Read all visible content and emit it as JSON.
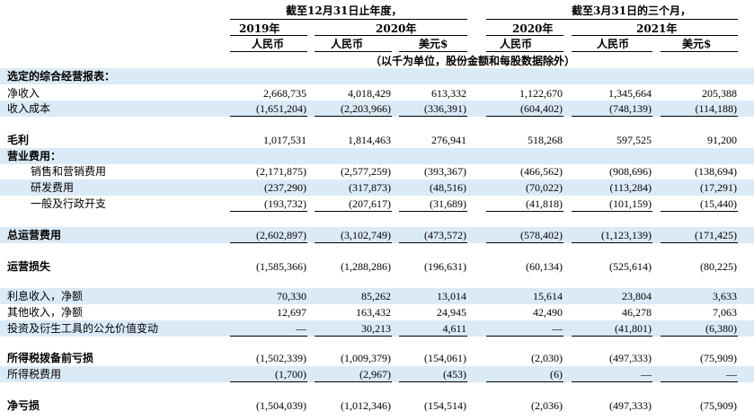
{
  "header": {
    "period_fy": "截至12月31日止年度，",
    "period_q": "截至3月31日的三个月，",
    "years": [
      "2019年",
      "2020年",
      "2020年",
      "2021年"
    ],
    "currencies": [
      "人民币",
      "人民币",
      "美元$",
      "人民币",
      "人民币",
      "美元$"
    ],
    "unit_note": "（以千为单位，股份金额和每股数据除外）"
  },
  "rows": [
    {
      "label": "选定的综合经营报表：",
      "bold": true,
      "shade": true,
      "indent": 0,
      "values": [
        "",
        "",
        "",
        "",
        "",
        ""
      ]
    },
    {
      "label": "净收入",
      "bold": false,
      "shade": false,
      "indent": 0,
      "values": [
        "2,668,735",
        "4,018,429",
        "613,332",
        "1,122,670",
        "1,345,664",
        "205,388"
      ]
    },
    {
      "label": "收入成本",
      "bold": false,
      "shade": true,
      "indent": 0,
      "values": [
        "(1,651,204)",
        "(2,203,966)",
        "(336,391)",
        "(604,402)",
        "(748,139)",
        "(114,188)"
      ]
    },
    {
      "label": "",
      "bold": false,
      "shade": false,
      "indent": 0,
      "values": [
        "",
        "",
        "",
        "",
        "",
        ""
      ]
    },
    {
      "label": "毛利",
      "bold": true,
      "shade": false,
      "indent": 0,
      "values": [
        "1,017,531",
        "1,814,463",
        "276,941",
        "518,268",
        "597,525",
        "91,200"
      ]
    },
    {
      "label": "营业费用：",
      "bold": true,
      "shade": true,
      "indent": 0,
      "values": [
        "",
        "",
        "",
        "",
        "",
        ""
      ]
    },
    {
      "label": "销售和营销费用",
      "bold": false,
      "shade": false,
      "indent": 1,
      "values": [
        "(2,171,875)",
        "(2,577,259)",
        "(393,367)",
        "(466,562)",
        "(908,696)",
        "(138,694)"
      ]
    },
    {
      "label": "研发费用",
      "bold": false,
      "shade": true,
      "indent": 1,
      "values": [
        "(237,290)",
        "(317,873)",
        "(48,516)",
        "(70,022)",
        "(113,284)",
        "(17,291)"
      ]
    },
    {
      "label": "一般及行政开支",
      "bold": false,
      "shade": false,
      "indent": 1,
      "values": [
        "(193,732)",
        "(207,617)",
        "(31,689)",
        "(41,818)",
        "(101,159)",
        "(15,440)"
      ]
    },
    {
      "label": "",
      "bold": false,
      "shade": false,
      "indent": 0,
      "values": [
        "",
        "",
        "",
        "",
        "",
        ""
      ]
    },
    {
      "label": "总运营费用",
      "bold": true,
      "shade": true,
      "indent": 0,
      "values": [
        "(2,602,897)",
        "(3,102,749)",
        "(473,572)",
        "(578,402)",
        "(1,123,139)",
        "(171,425)"
      ]
    },
    {
      "label": "",
      "bold": false,
      "shade": false,
      "indent": 0,
      "values": [
        "",
        "",
        "",
        "",
        "",
        ""
      ]
    },
    {
      "label": "运营损失",
      "bold": true,
      "shade": false,
      "indent": 0,
      "values": [
        "(1,585,366)",
        "(1,288,286)",
        "(196,631)",
        "(60,134)",
        "(525,614)",
        "(80,225)"
      ]
    },
    {
      "label": "",
      "bold": false,
      "shade": false,
      "indent": 0,
      "values": [
        "",
        "",
        "",
        "",
        "",
        ""
      ]
    },
    {
      "label": "利息收入，净额",
      "bold": false,
      "shade": true,
      "indent": 0,
      "values": [
        "70,330",
        "85,262",
        "13,014",
        "15,614",
        "23,804",
        "3,633"
      ]
    },
    {
      "label": "其他收入，净额",
      "bold": false,
      "shade": false,
      "indent": 0,
      "values": [
        "12,697",
        "163,432",
        "24,945",
        "42,490",
        "46,278",
        "7,063"
      ]
    },
    {
      "label": "投资及衍生工具的公允价值变动",
      "bold": false,
      "shade": true,
      "indent": 0,
      "values": [
        "—",
        "30,213",
        "4,611",
        "—",
        "(41,801)",
        "(6,380)"
      ]
    },
    {
      "label": "",
      "bold": false,
      "shade": false,
      "indent": 0,
      "values": [
        "",
        "",
        "",
        "",
        "",
        ""
      ]
    },
    {
      "label": "所得税拨备前亏损",
      "bold": true,
      "shade": false,
      "indent": 0,
      "values": [
        "(1,502,339)",
        "(1,009,379)",
        "(154,061)",
        "(2,030)",
        "(497,333)",
        "(75,909)"
      ]
    },
    {
      "label": "所得税费用",
      "bold": false,
      "shade": true,
      "indent": 0,
      "values": [
        "(1,700)",
        "(2,967)",
        "(453)",
        "(6)",
        "—",
        "—"
      ]
    },
    {
      "label": "",
      "bold": false,
      "shade": false,
      "indent": 0,
      "values": [
        "",
        "",
        "",
        "",
        "",
        ""
      ]
    },
    {
      "label": "净亏损",
      "bold": true,
      "shade": false,
      "indent": 0,
      "values": [
        "(1,504,039)",
        "(1,012,346)",
        "(154,514)",
        "(2,036)",
        "(497,333)",
        "(75,909)"
      ]
    }
  ]
}
